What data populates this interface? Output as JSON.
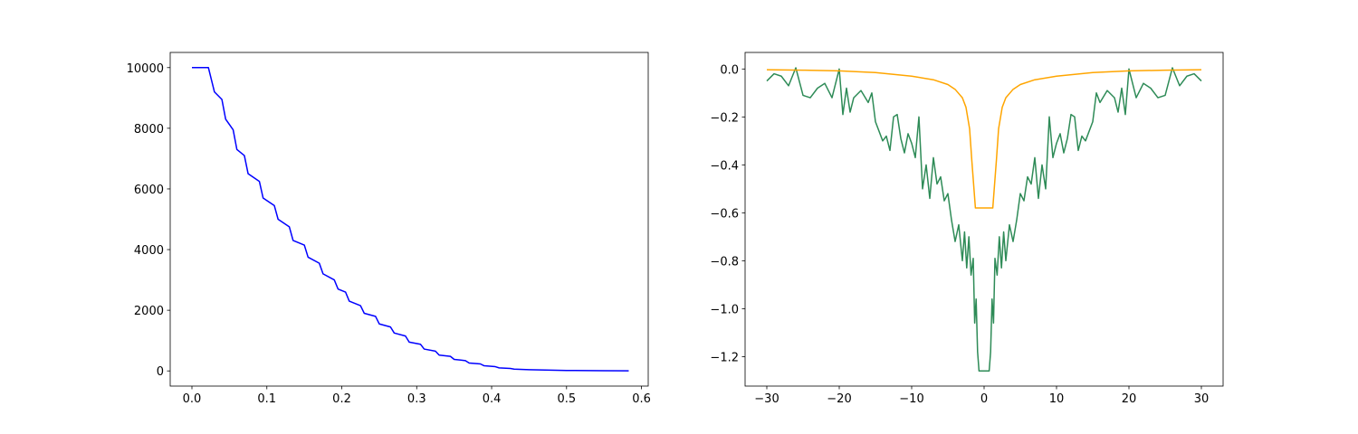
{
  "chart_data": [
    {
      "type": "line",
      "xlim": [
        -0.029,
        0.609
      ],
      "ylim": [
        -500,
        10500
      ],
      "xticks": [
        {
          "value": 0,
          "label": "0.0"
        },
        {
          "value": 0.1,
          "label": "0.1"
        },
        {
          "value": 0.2,
          "label": "0.2"
        },
        {
          "value": 0.3,
          "label": "0.3"
        },
        {
          "value": 0.4,
          "label": "0.4"
        },
        {
          "value": 0.5,
          "label": "0.5"
        },
        {
          "value": 0.6,
          "label": "0.6"
        }
      ],
      "yticks": [
        0,
        2000,
        4000,
        6000,
        8000,
        10000
      ],
      "series": [
        {
          "color": "#0000ff",
          "x": [
            0,
            0.022,
            0.03,
            0.04,
            0.045,
            0.055,
            0.06,
            0.07,
            0.075,
            0.09,
            0.095,
            0.11,
            0.115,
            0.13,
            0.135,
            0.15,
            0.155,
            0.17,
            0.175,
            0.19,
            0.195,
            0.205,
            0.21,
            0.225,
            0.23,
            0.245,
            0.25,
            0.265,
            0.27,
            0.285,
            0.29,
            0.305,
            0.31,
            0.325,
            0.33,
            0.345,
            0.35,
            0.365,
            0.37,
            0.385,
            0.39,
            0.405,
            0.41,
            0.425,
            0.43,
            0.45,
            0.5,
            0.55,
            0.583
          ],
          "values": [
            10000,
            10000,
            9200,
            8950,
            8300,
            7950,
            7300,
            7100,
            6500,
            6250,
            5700,
            5450,
            5000,
            4750,
            4300,
            4150,
            3750,
            3550,
            3200,
            3000,
            2700,
            2600,
            2300,
            2150,
            1900,
            1800,
            1550,
            1450,
            1250,
            1150,
            950,
            880,
            720,
            650,
            520,
            480,
            380,
            340,
            260,
            230,
            170,
            140,
            100,
            80,
            60,
            40,
            15,
            5,
            2
          ]
        }
      ]
    },
    {
      "type": "line",
      "xlim": [
        -33,
        33
      ],
      "ylim": [
        -1.323,
        0.069
      ],
      "xticks": [
        {
          "value": -30,
          "label": "−30"
        },
        {
          "value": -20,
          "label": "−20"
        },
        {
          "value": -10,
          "label": "−10"
        },
        0,
        10,
        20,
        30
      ],
      "yticks": [
        {
          "value": 0,
          "label": "0.0"
        },
        {
          "value": -0.2,
          "label": "−0.2"
        },
        {
          "value": -0.4,
          "label": "−0.4"
        },
        {
          "value": -0.6,
          "label": "−0.6"
        },
        {
          "value": -0.8,
          "label": "−0.8"
        },
        {
          "value": -1.0,
          "label": "−1.0"
        },
        {
          "value": -1.2,
          "label": "−1.2"
        }
      ],
      "series": [
        {
          "color": "#2e8b57",
          "x": [
            -30,
            -29,
            -28,
            -27,
            -26,
            -25,
            -24,
            -23,
            -22,
            -21,
            -20,
            -19.5,
            -19,
            -18.5,
            -18,
            -17,
            -16,
            -15.5,
            -15,
            -14,
            -13.5,
            -13,
            -12.5,
            -12,
            -11.5,
            -11,
            -10.5,
            -10,
            -9.5,
            -9,
            -8.5,
            -8,
            -7.5,
            -7,
            -6.5,
            -6,
            -5.5,
            -5,
            -4.5,
            -4,
            -3.5,
            -3,
            -2.7,
            -2.4,
            -2.1,
            -1.8,
            -1.5,
            -1.3,
            -1.1,
            -0.9,
            -0.7,
            0.7,
            0.9,
            1.1,
            1.3,
            1.5,
            1.8,
            2.1,
            2.4,
            2.7,
            3,
            3.5,
            4,
            4.5,
            5,
            5.5,
            6,
            6.5,
            7,
            7.5,
            8,
            8.5,
            9,
            9.5,
            10,
            10.5,
            11,
            11.5,
            12,
            12.5,
            13,
            13.5,
            14,
            15,
            15.5,
            16,
            17,
            18,
            18.5,
            19,
            19.5,
            20,
            21,
            22,
            23,
            24,
            25,
            26,
            27,
            28,
            29,
            30
          ],
          "values": [
            -0.05,
            -0.02,
            -0.03,
            -0.07,
            0.005,
            -0.11,
            -0.12,
            -0.08,
            -0.06,
            -0.12,
            0,
            -0.19,
            -0.08,
            -0.18,
            -0.12,
            -0.09,
            -0.14,
            -0.1,
            -0.22,
            -0.3,
            -0.28,
            -0.34,
            -0.2,
            -0.19,
            -0.29,
            -0.35,
            -0.27,
            -0.31,
            -0.37,
            -0.2,
            -0.5,
            -0.4,
            -0.54,
            -0.37,
            -0.48,
            -0.45,
            -0.55,
            -0.52,
            -0.63,
            -0.72,
            -0.65,
            -0.8,
            -0.68,
            -0.83,
            -0.7,
            -0.86,
            -0.79,
            -1.06,
            -0.96,
            -1.18,
            -1.26,
            -1.26,
            -1.18,
            -0.96,
            -1.06,
            -0.79,
            -0.86,
            -0.7,
            -0.83,
            -0.68,
            -0.8,
            -0.65,
            -0.72,
            -0.63,
            -0.52,
            -0.55,
            -0.45,
            -0.48,
            -0.37,
            -0.54,
            -0.4,
            -0.5,
            -0.2,
            -0.37,
            -0.31,
            -0.27,
            -0.35,
            -0.29,
            -0.19,
            -0.2,
            -0.34,
            -0.28,
            -0.3,
            -0.22,
            -0.1,
            -0.14,
            -0.09,
            -0.12,
            -0.18,
            -0.08,
            -0.19,
            0,
            -0.12,
            -0.06,
            -0.08,
            -0.12,
            -0.11,
            0.005,
            -0.07,
            -0.03,
            -0.02,
            -0.05
          ]
        },
        {
          "color": "#ffa500",
          "x": [
            -30,
            -25,
            -20,
            -15,
            -10,
            -7,
            -5,
            -4,
            -3,
            -2.5,
            -2,
            -1.7,
            -1.4,
            -1.2,
            1.2,
            1.4,
            1.7,
            2,
            2.5,
            3,
            4,
            5,
            7,
            10,
            15,
            20,
            25,
            30
          ],
          "values": [
            -0.003,
            -0.005,
            -0.008,
            -0.015,
            -0.03,
            -0.045,
            -0.065,
            -0.085,
            -0.12,
            -0.16,
            -0.25,
            -0.38,
            -0.5,
            -0.58,
            -0.58,
            -0.5,
            -0.38,
            -0.25,
            -0.16,
            -0.12,
            -0.085,
            -0.065,
            -0.045,
            -0.03,
            -0.015,
            -0.008,
            -0.005,
            -0.003
          ]
        }
      ]
    }
  ]
}
